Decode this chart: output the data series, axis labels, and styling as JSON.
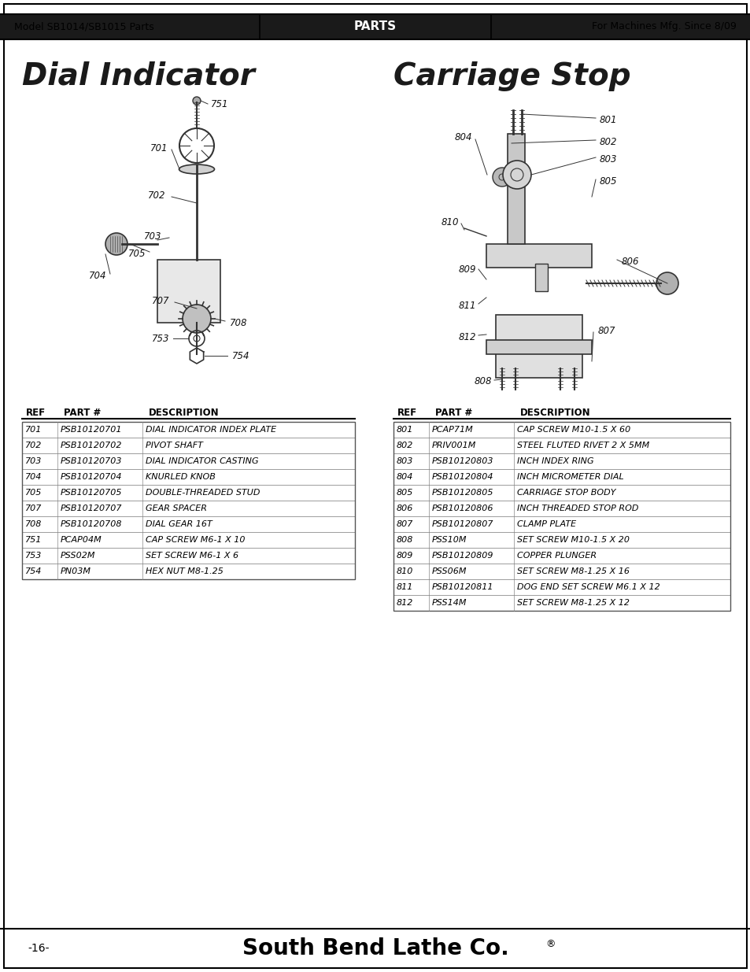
{
  "page_bg": "#ffffff",
  "header_bg": "#1a1a1a",
  "header_text_color": "#ffffff",
  "header_left": "Model SB1014/SB1015 Parts",
  "header_center": "PARTS",
  "header_right": "For Machines Mfg. Since 8/09",
  "title_left": "Dial Indicator",
  "title_right": "Carriage Stop",
  "footer_text": "South Bend Lathe Co.",
  "footer_page": "-16-",
  "table_left_headers": [
    "REF",
    "PART #",
    "DESCRIPTION"
  ],
  "table_left_rows": [
    [
      "701",
      "PSB10120701",
      "DIAL INDICATOR INDEX PLATE"
    ],
    [
      "702",
      "PSB10120702",
      "PIVOT SHAFT"
    ],
    [
      "703",
      "PSB10120703",
      "DIAL INDICATOR CASTING"
    ],
    [
      "704",
      "PSB10120704",
      "KNURLED KNOB"
    ],
    [
      "705",
      "PSB10120705",
      "DOUBLE-THREADED STUD"
    ],
    [
      "707",
      "PSB10120707",
      "GEAR SPACER"
    ],
    [
      "708",
      "PSB10120708",
      "DIAL GEAR 16T"
    ],
    [
      "751",
      "PCAP04M",
      "CAP SCREW M6-1 X 10"
    ],
    [
      "753",
      "PSS02M",
      "SET SCREW M6-1 X 6"
    ],
    [
      "754",
      "PN03M",
      "HEX NUT M8-1.25"
    ]
  ],
  "table_right_headers": [
    "REF",
    "PART #",
    "DESCRIPTION"
  ],
  "table_right_rows": [
    [
      "801",
      "PCAP71M",
      "CAP SCREW M10-1.5 X 60"
    ],
    [
      "802",
      "PRIV001M",
      "STEEL FLUTED RIVET 2 X 5MM"
    ],
    [
      "803",
      "PSB10120803",
      "INCH INDEX RING"
    ],
    [
      "804",
      "PSB10120804",
      "INCH MICROMETER DIAL"
    ],
    [
      "805",
      "PSB10120805",
      "CARRIAGE STOP BODY"
    ],
    [
      "806",
      "PSB10120806",
      "INCH THREADED STOP ROD"
    ],
    [
      "807",
      "PSB10120807",
      "CLAMP PLATE"
    ],
    [
      "808",
      "PSS10M",
      "SET SCREW M10-1.5 X 20"
    ],
    [
      "809",
      "PSB10120809",
      "COPPER PLUNGER"
    ],
    [
      "810",
      "PSS06M",
      "SET SCREW M8-1.25 X 16"
    ],
    [
      "811",
      "PSB10120811",
      "DOG END SET SCREW M6.1 X 12"
    ],
    [
      "812",
      "PSS14M",
      "SET SCREW M8-1.25 X 12"
    ]
  ],
  "border_color": "#000000",
  "table_line_color": "#555555",
  "text_color": "#000000",
  "title_color": "#1a1a1a"
}
